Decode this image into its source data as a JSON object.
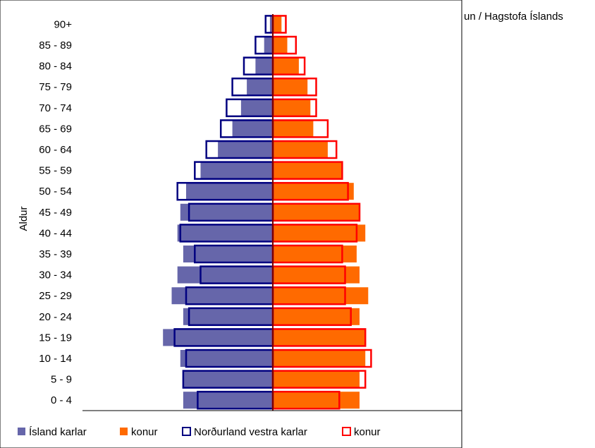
{
  "source_text": "un / Hagstofa Íslands",
  "chart_data": {
    "type": "bar",
    "orientation": "horizontal",
    "subtype": "population-pyramid",
    "ylabel": "Aldur",
    "categories": [
      "0 - 4",
      "5 - 9",
      "10 - 14",
      "15 - 19",
      "20 - 24",
      "25 - 29",
      "30 - 34",
      "35 - 39",
      "40 - 44",
      "45 - 49",
      "50 - 54",
      "55 - 59",
      "60 - 64",
      "65 - 69",
      "70 - 74",
      "75 - 79",
      "80 - 84",
      "85 - 89",
      "90+"
    ],
    "units": "percent of population",
    "xlim": [
      -6.5,
      6.5
    ],
    "grid": false,
    "legend_position": "bottom",
    "series": [
      {
        "name": "Ísland karlar",
        "side": "left",
        "style": "filled",
        "color": "#6666aa",
        "values": [
          3.1,
          3.1,
          3.2,
          3.8,
          3.1,
          3.5,
          3.3,
          3.1,
          3.3,
          3.2,
          3.0,
          2.5,
          1.9,
          1.4,
          1.1,
          0.9,
          0.6,
          0.3,
          0.1
        ]
      },
      {
        "name": "konur",
        "side": "right",
        "style": "filled",
        "color": "#ff6a00",
        "values": [
          3.0,
          3.0,
          3.2,
          3.2,
          3.0,
          3.3,
          3.0,
          2.9,
          3.2,
          3.0,
          2.8,
          2.4,
          1.9,
          1.4,
          1.3,
          1.2,
          0.9,
          0.5,
          0.3
        ]
      },
      {
        "name": "Norðurland vestra karlar",
        "side": "left",
        "style": "outline",
        "color": "#000080",
        "values": [
          2.6,
          3.1,
          3.0,
          3.4,
          2.9,
          3.0,
          2.5,
          2.7,
          3.2,
          2.9,
          3.3,
          2.7,
          2.3,
          1.8,
          1.6,
          1.4,
          1.0,
          0.6,
          0.25
        ]
      },
      {
        "name": "konur",
        "side": "right",
        "style": "outline",
        "color": "#ff0000",
        "values": [
          2.3,
          3.2,
          3.4,
          3.2,
          2.7,
          2.5,
          2.5,
          2.4,
          2.9,
          3.0,
          2.6,
          2.4,
          2.2,
          1.9,
          1.5,
          1.5,
          1.1,
          0.8,
          0.45
        ]
      }
    ]
  }
}
